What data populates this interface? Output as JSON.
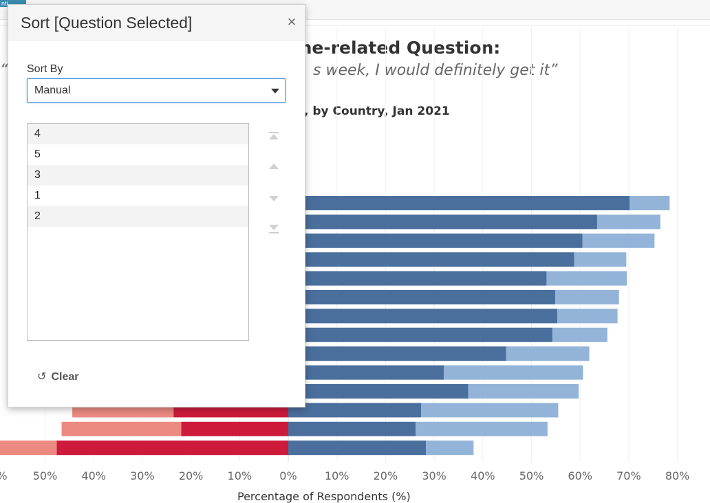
{
  "top_tab": {
    "label": "nti"
  },
  "title": {
    "line1": "ine-related Question:",
    "line2_quote_mark": "“",
    "line2": "s week, I would definitely get it”",
    "line3": ", by Country, Jan 2021"
  },
  "dialog": {
    "title": "Sort [Question Selected]",
    "close": "×",
    "sort_by_label": "Sort By",
    "sort_by_value": "Manual",
    "items": [
      "4",
      "5",
      "3",
      "1",
      "2"
    ],
    "clear_label": "Clear"
  },
  "colors": {
    "dark_blue": "#4a6f9c",
    "light_blue": "#93b4d8",
    "dark_red": "#cd1a3b",
    "light_red": "#ec8a82"
  },
  "chart_data": {
    "type": "bar",
    "orientation": "horizontal-diverging",
    "xlabel": "Percentage of Respondents (%)",
    "xlim": [
      -60,
      80
    ],
    "tick_labels": [
      "%",
      "50%",
      "40%",
      "30%",
      "20%",
      "10%",
      "0%",
      "10%",
      "20%",
      "30%",
      "40%",
      "50%",
      "60%",
      "70%",
      "80%"
    ],
    "tick_values": [
      -60,
      -50,
      -40,
      -30,
      -20,
      -10,
      0,
      10,
      20,
      30,
      40,
      50,
      60,
      70,
      80
    ],
    "series": [
      {
        "color": "dark_blue",
        "values": [
          70.2,
          63.5,
          60.5,
          58.8,
          53.1,
          54.9,
          55.3,
          54.3,
          44.8,
          32.0,
          37.0,
          27.3,
          26.2,
          28.3
        ]
      },
      {
        "color": "light_blue",
        "values": [
          8.2,
          13.0,
          14.8,
          10.7,
          16.5,
          13.1,
          12.4,
          11.3,
          17.1,
          28.6,
          22.7,
          28.2,
          27.1,
          9.8
        ]
      },
      {
        "color": "dark_red",
        "values": [
          0,
          0,
          0,
          0,
          0,
          0,
          0,
          0,
          0,
          0,
          0,
          23.6,
          22.0,
          47.6
        ]
      },
      {
        "color": "light_red",
        "values": [
          0,
          0,
          0,
          0,
          0,
          0,
          0,
          0,
          0,
          0,
          0,
          20.8,
          24.6,
          20.0
        ]
      }
    ]
  }
}
